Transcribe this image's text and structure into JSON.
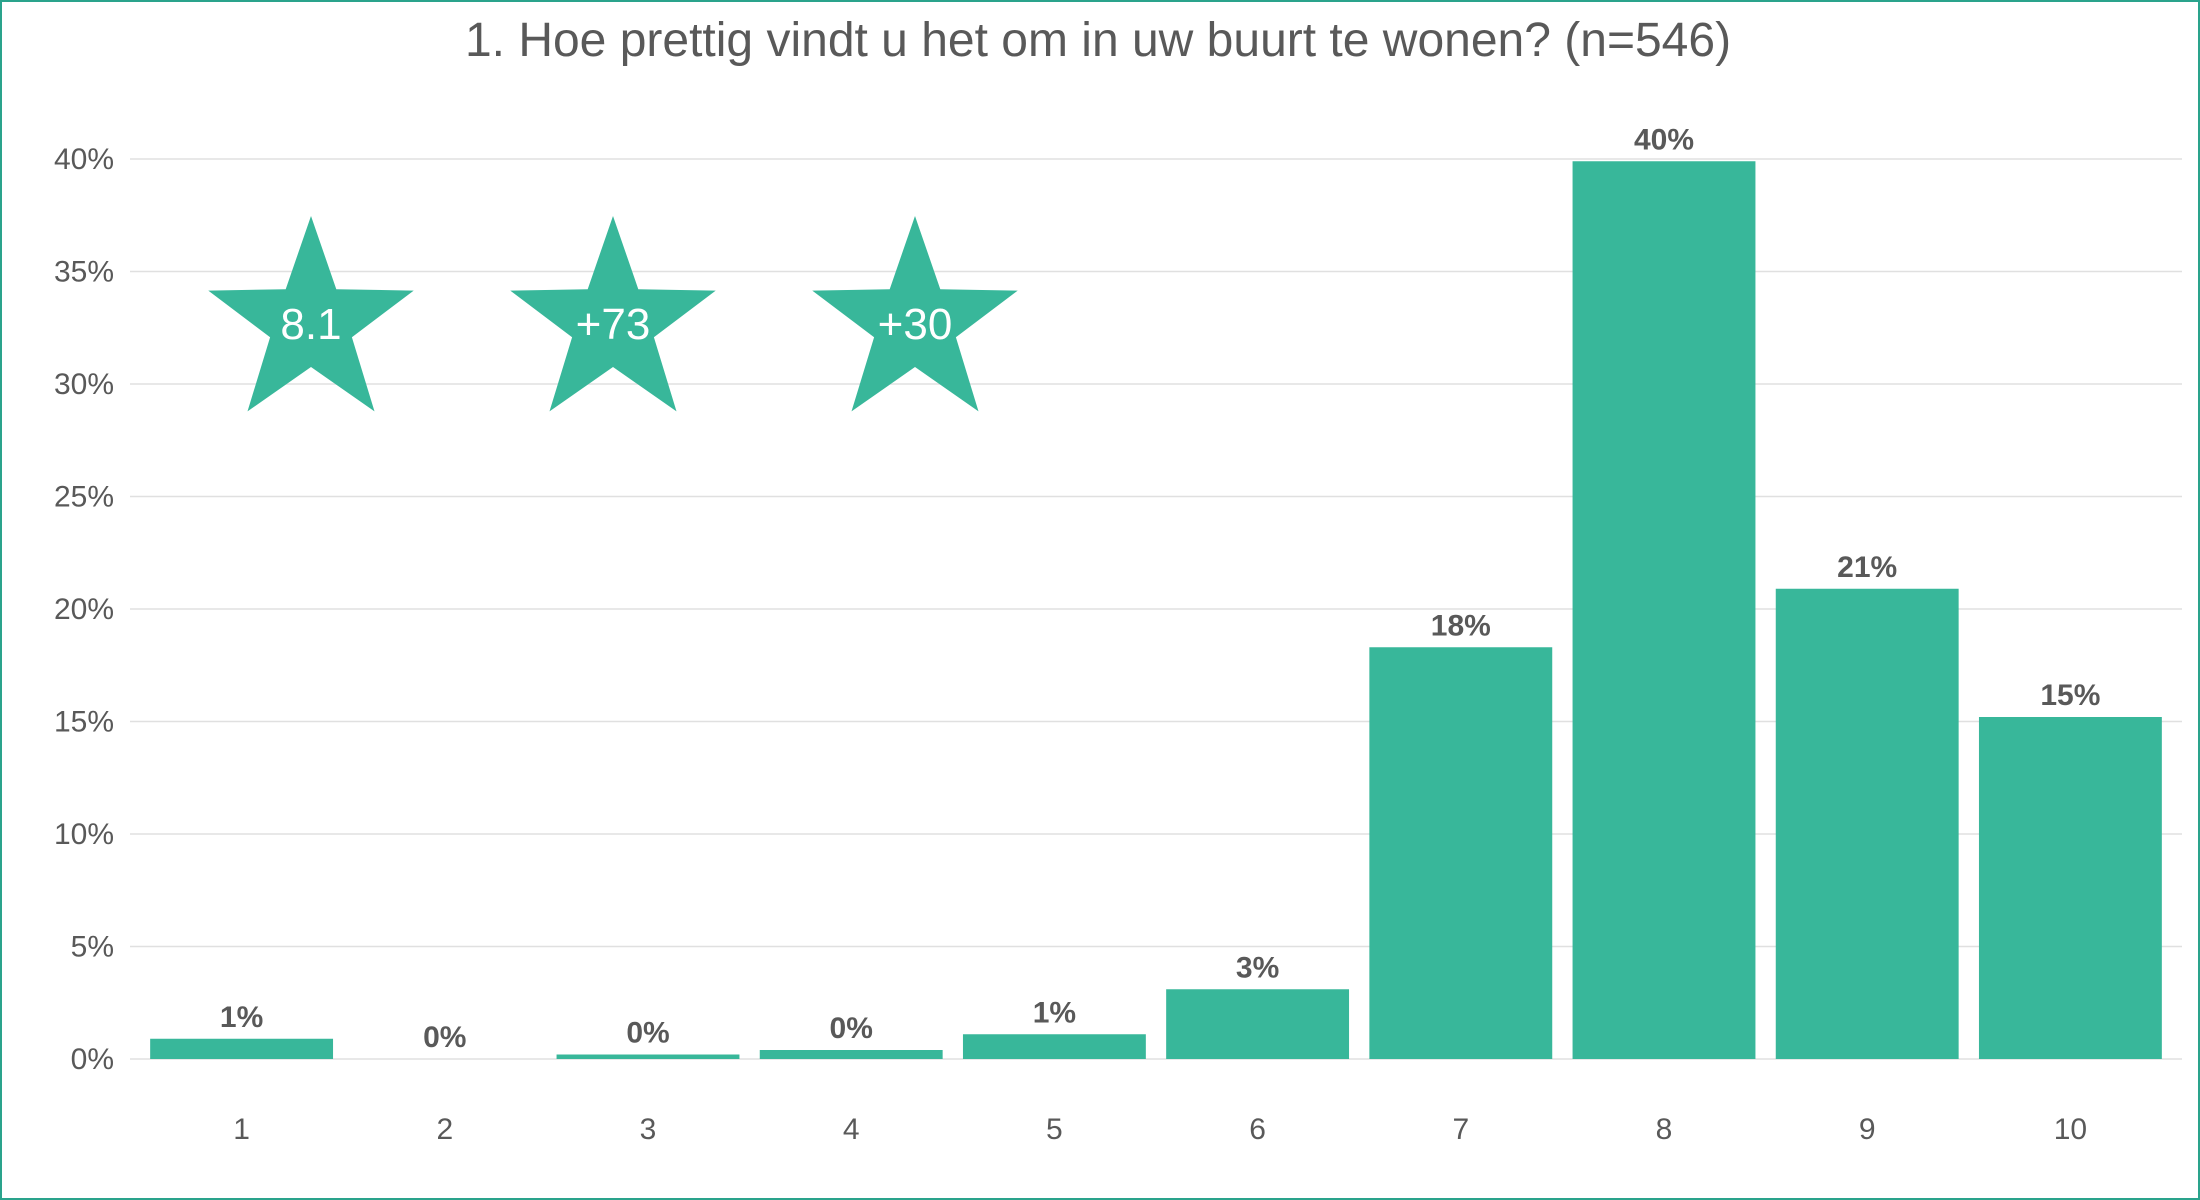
{
  "chart_data": {
    "type": "bar",
    "title": "1. Hoe prettig vindt u het om in uw buurt te wonen? (n=546)",
    "xlabel": "",
    "ylabel": "",
    "categories": [
      "1",
      "2",
      "3",
      "4",
      "5",
      "6",
      "7",
      "8",
      "9",
      "10"
    ],
    "values": [
      0.9,
      0.0,
      0.2,
      0.4,
      1.1,
      3.1,
      18.3,
      39.9,
      20.9,
      15.2
    ],
    "data_labels": [
      "1%",
      "0%",
      "0%",
      "0%",
      "1%",
      "3%",
      "18%",
      "40%",
      "21%",
      "15%"
    ],
    "ylim": [
      0,
      40
    ],
    "yticks": [
      0,
      5,
      10,
      15,
      20,
      25,
      30,
      35,
      40
    ],
    "ytick_labels": [
      "0%",
      "5%",
      "10%",
      "15%",
      "20%",
      "25%",
      "30%",
      "35%",
      "40%"
    ],
    "grid": true,
    "legend": "none",
    "bar_color": "#38b79a"
  },
  "badges": [
    {
      "label": "8.1",
      "icon": "star-icon"
    },
    {
      "label": "+73",
      "icon": "star-icon"
    },
    {
      "label": "+30",
      "icon": "star-icon"
    }
  ],
  "colors": {
    "frame_border": "#2aa38c",
    "text": "#595959",
    "grid": "#e0e0e0",
    "star_fill": "#38b79a"
  }
}
